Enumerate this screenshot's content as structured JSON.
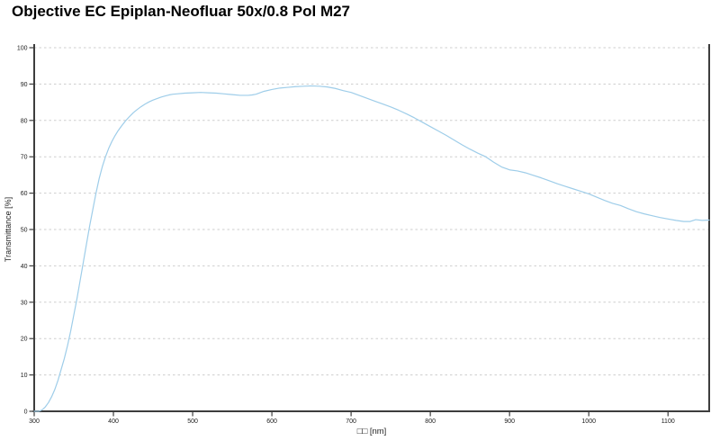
{
  "window": {
    "background": "#ffffff"
  },
  "header": {
    "title": "Objective EC Epiplan-Neofluar 50x/0.8 Pol M27"
  },
  "chart_data": {
    "type": "line",
    "title": "Objective EC Epiplan-Neofluar 50x/0.8 Pol M27",
    "xlabel": "□□ [nm]",
    "ylabel": "Transmittance [%]",
    "xlim": [
      300,
      1152
    ],
    "ylim": [
      0,
      100
    ],
    "x_ticks": [
      300,
      400,
      500,
      600,
      700,
      800,
      900,
      1000,
      1100
    ],
    "y_ticks": [
      0,
      10,
      20,
      30,
      40,
      50,
      60,
      70,
      80,
      90,
      100
    ],
    "grid": {
      "horizontal": true,
      "vertical": false,
      "style": "dashed",
      "color": "#cdcdcd"
    },
    "legend_position": "none",
    "colors": {
      "line": "#9ecde9",
      "axis": "#3d3d3d",
      "tick_label": "#1b1b1b",
      "grid": "#cdcdcd"
    },
    "series": [
      {
        "name": "Transmittance",
        "x": [
          300,
          306,
          310,
          314,
          318,
          322,
          326,
          330,
          334,
          338,
          342,
          346,
          350,
          354,
          358,
          362,
          366,
          370,
          374,
          378,
          382,
          386,
          390,
          394,
          398,
          402,
          406,
          410,
          415,
          420,
          425,
          430,
          435,
          440,
          445,
          450,
          455,
          460,
          465,
          470,
          475,
          480,
          490,
          500,
          510,
          520,
          530,
          540,
          550,
          560,
          570,
          575,
          580,
          585,
          590,
          600,
          610,
          620,
          630,
          640,
          650,
          660,
          670,
          680,
          690,
          700,
          710,
          720,
          730,
          740,
          750,
          760,
          770,
          780,
          790,
          800,
          810,
          820,
          830,
          840,
          850,
          860,
          870,
          880,
          890,
          900,
          910,
          920,
          930,
          940,
          950,
          960,
          970,
          980,
          990,
          1000,
          1010,
          1020,
          1030,
          1040,
          1050,
          1060,
          1070,
          1080,
          1090,
          1100,
          1110,
          1120,
          1128,
          1135,
          1143,
          1152
        ],
        "y": [
          0,
          0,
          0.4,
          1.2,
          2.4,
          4,
          6,
          8.5,
          11.5,
          14.5,
          18,
          22,
          26.5,
          31,
          36,
          41,
          46,
          51,
          55.5,
          60,
          64,
          67.3,
          70,
          72.3,
          74.2,
          75.8,
          77.2,
          78.4,
          79.8,
          81,
          82.1,
          83,
          83.8,
          84.5,
          85.1,
          85.6,
          86,
          86.4,
          86.7,
          87,
          87.2,
          87.3,
          87.5,
          87.6,
          87.7,
          87.6,
          87.5,
          87.3,
          87.1,
          86.9,
          86.9,
          87,
          87.2,
          87.6,
          88,
          88.5,
          88.9,
          89.1,
          89.3,
          89.4,
          89.5,
          89.4,
          89.2,
          88.8,
          88.2,
          87.7,
          86.9,
          86.1,
          85.3,
          84.5,
          83.7,
          82.8,
          81.8,
          80.7,
          79.5,
          78.3,
          77.1,
          75.9,
          74.6,
          73.3,
          72.1,
          71,
          70,
          68.5,
          67.2,
          66.4,
          66.1,
          65.6,
          64.9,
          64.2,
          63.4,
          62.6,
          61.9,
          61.2,
          60.5,
          59.8,
          58.9,
          58,
          57.2,
          56.6,
          55.7,
          54.9,
          54.3,
          53.8,
          53.3,
          52.9,
          52.5,
          52.2,
          52.2,
          52.7,
          52.5,
          52.6
        ]
      }
    ]
  }
}
